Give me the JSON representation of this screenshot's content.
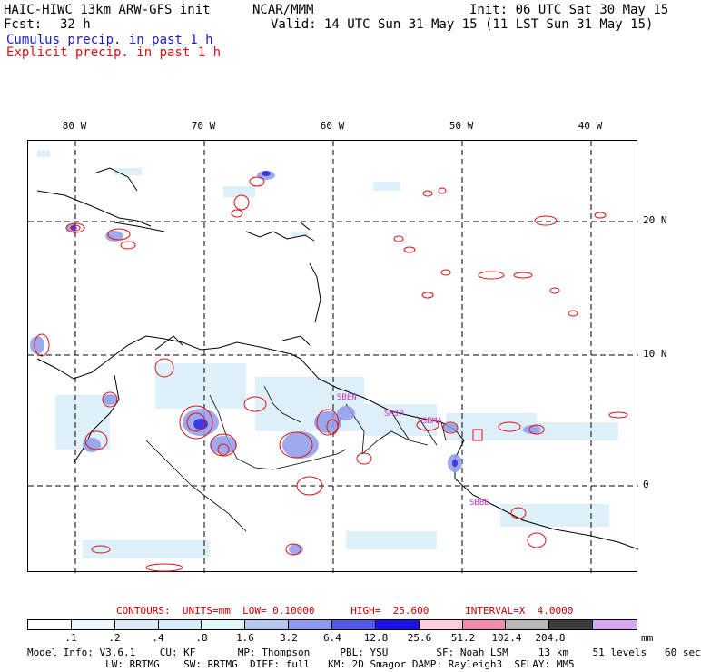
{
  "header": {
    "model": "HAIC-HIWC 13km ARW-GFS init",
    "org": "NCAR/MMM",
    "init": "Init: 06 UTC Sat 30 May 15",
    "fcst_label": "Fcst:",
    "fcst_value": "32 h",
    "valid": "Valid: 14 UTC Sun 31 May 15 (11 LST Sun 31 May 15)"
  },
  "legend": {
    "cumulus": "Cumulus precip. in past 1 h",
    "explicit": "Explicit precip. in past 1 h",
    "cumulus_color": "#1a1acc",
    "explicit_color": "#dd1111"
  },
  "map": {
    "lon_labels": [
      "80 W",
      "70 W",
      "60 W",
      "50 W",
      "40 W"
    ],
    "lat_labels": [
      "20 N",
      "10 N",
      "0"
    ],
    "stations": [
      "SBEN",
      "SMJP",
      "SBMA",
      "SBBE"
    ]
  },
  "contours_line": "CONTOURS:  UNITS=mm  LOW= 0.10000      HIGH=  25.600      INTERVAL=X  4.0000",
  "colorbar": {
    "ticks": [
      ".1",
      ".2",
      ".4",
      ".8",
      "1.6",
      "3.2",
      "6.4",
      "12.8",
      "25.6",
      "51.2",
      "102.4",
      "204.8"
    ],
    "units": "mm",
    "colors": [
      "#ffffff",
      "#eef5fb",
      "#dde9f6",
      "#d6ecf8",
      "#e3f7f7",
      "#b8c8ee",
      "#8f9bea",
      "#5058e8",
      "#1a12e8",
      "#fbd0dc",
      "#f08aae",
      "#b9b9b9",
      "#3b3b3b",
      "#d6a6ee"
    ]
  },
  "footer": {
    "line1": "Model Info: V3.6.1    CU: KF       MP: Thompson     PBL: YSU        SF: Noah LSM     13 km    51 levels   60 sec",
    "line2": "             LW: RRTMG    SW: RRTMG  DIFF: full   KM: 2D Smagor DAMP: Rayleigh3  SFLAY: MM5"
  }
}
